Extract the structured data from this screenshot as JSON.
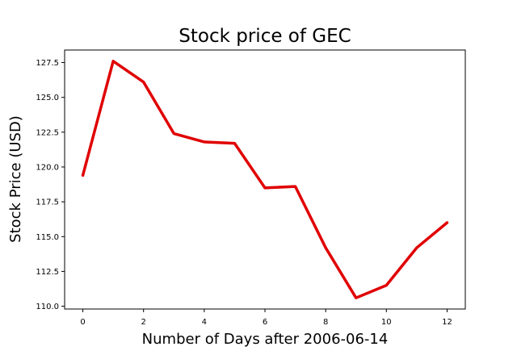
{
  "chart_data": {
    "type": "line",
    "title": "Stock price of GEC",
    "xlabel": "Number of Days after 2006-06-14",
    "ylabel": "Stock Price (USD)",
    "xlim": [
      -0.6,
      12.6
    ],
    "ylim": [
      109.8,
      128.4
    ],
    "xticks": [
      0,
      2,
      4,
      6,
      8,
      10,
      12
    ],
    "xtick_labels": [
      "0",
      "2",
      "4",
      "6",
      "8",
      "10",
      "12"
    ],
    "yticks": [
      110.0,
      112.5,
      115.0,
      117.5,
      120.0,
      122.5,
      125.0,
      127.5
    ],
    "ytick_labels": [
      "110.0",
      "112.5",
      "115.0",
      "117.5",
      "120.0",
      "122.5",
      "125.0",
      "127.5"
    ],
    "grid": false,
    "series": [
      {
        "color": "#e00000",
        "x": [
          0,
          1,
          2,
          3,
          4,
          5,
          6,
          7,
          8,
          9,
          10,
          11,
          12
        ],
        "y": [
          119.4,
          127.6,
          126.1,
          122.4,
          121.8,
          121.7,
          118.5,
          118.6,
          114.2,
          110.6,
          111.5,
          114.2,
          116.0
        ]
      }
    ]
  }
}
